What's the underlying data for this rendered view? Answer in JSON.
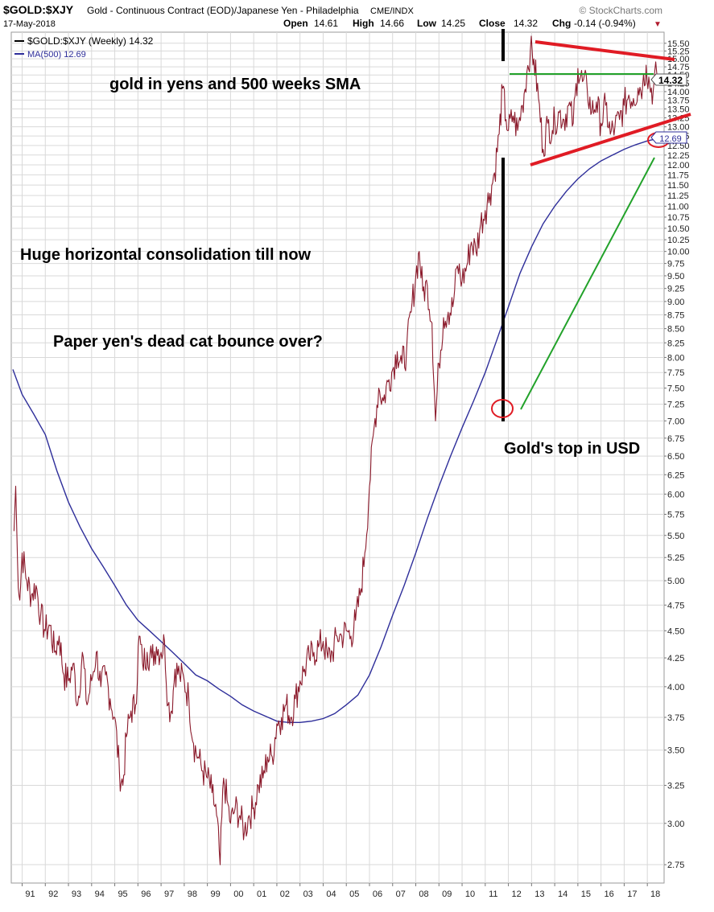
{
  "header": {
    "symbol": "$GOLD:$XJY",
    "description": "Gold - Continuous Contract (EOD)/Japanese Yen - Philadelphia",
    "exchange": "CME/INDX",
    "brand": "© StockCharts.com",
    "date": "17-May-2018",
    "open_label": "Open",
    "open_value": "14.61",
    "high_label": "High",
    "high_value": "14.66",
    "low_label": "Low",
    "low_value": "14.25",
    "close_label": "Close",
    "close_value": "14.32",
    "chg_label": "Chg",
    "chg_value": "-0.14 (-0.94%)",
    "chg_arrow": "▼"
  },
  "colors": {
    "price": "#8b1a2b",
    "ma": "#2e2e9a",
    "red_lines": "#e01b24",
    "green_lines": "#22a22a",
    "black_line": "#000000",
    "grid": "#d9d9d9"
  },
  "annotations": {
    "title_note": "gold in yens and 500 weeks SMA",
    "consolidation_note": "Huge horizontal consolidation till now",
    "dead_cat_note": "Paper yen's dead cat bounce over?",
    "top_note": "Gold's top in USD"
  },
  "chart_data": {
    "type": "line",
    "y_scale": "log",
    "ylim": [
      2.7,
      15.6
    ],
    "xlim": [
      1990.6,
      2018.55
    ],
    "legend": {
      "placement": "top-left",
      "items": [
        {
          "label": "$GOLD:$XJY (Weekly) 14.32",
          "series": "price"
        },
        {
          "label": "MA(500) 12.69",
          "series": "ma"
        }
      ]
    },
    "price_label": "14.32",
    "ma_label": "12.69",
    "y_ticks": [
      2.75,
      3.0,
      3.25,
      3.5,
      3.75,
      4.0,
      4.25,
      4.5,
      4.75,
      5.0,
      5.25,
      5.5,
      5.75,
      6.0,
      6.25,
      6.5,
      6.75,
      7.0,
      7.25,
      7.5,
      7.75,
      8.0,
      8.25,
      8.5,
      8.75,
      9.0,
      9.25,
      9.5,
      9.75,
      10.0,
      10.25,
      10.5,
      10.75,
      11.0,
      11.25,
      11.5,
      11.75,
      12.0,
      12.25,
      12.5,
      12.75,
      13.0,
      13.25,
      13.5,
      13.75,
      14.0,
      14.25,
      14.5,
      14.75,
      15.0,
      15.25,
      15.5
    ],
    "x_ticks": [
      {
        "label": "91",
        "x": 1991
      },
      {
        "label": "92",
        "x": 1992
      },
      {
        "label": "93",
        "x": 1993
      },
      {
        "label": "94",
        "x": 1994
      },
      {
        "label": "95",
        "x": 1995
      },
      {
        "label": "96",
        "x": 1996
      },
      {
        "label": "97",
        "x": 1997
      },
      {
        "label": "98",
        "x": 1998
      },
      {
        "label": "99",
        "x": 1999
      },
      {
        "label": "00",
        "x": 2000
      },
      {
        "label": "01",
        "x": 2001
      },
      {
        "label": "02",
        "x": 2002
      },
      {
        "label": "03",
        "x": 2003
      },
      {
        "label": "04",
        "x": 2004
      },
      {
        "label": "05",
        "x": 2005
      },
      {
        "label": "06",
        "x": 2006
      },
      {
        "label": "07",
        "x": 2007
      },
      {
        "label": "08",
        "x": 2008
      },
      {
        "label": "09",
        "x": 2009
      },
      {
        "label": "10",
        "x": 2010
      },
      {
        "label": "11",
        "x": 2011
      },
      {
        "label": "12",
        "x": 2012
      },
      {
        "label": "13",
        "x": 2013
      },
      {
        "label": "14",
        "x": 2014
      },
      {
        "label": "15",
        "x": 2015
      },
      {
        "label": "16",
        "x": 2016
      },
      {
        "label": "17",
        "x": 2017
      },
      {
        "label": "18",
        "x": 2018
      }
    ],
    "series": [
      {
        "name": "$GOLD:$XJY (Weekly)",
        "key": "price",
        "points": [
          [
            1990.65,
            5.55
          ],
          [
            1990.72,
            6.1
          ],
          [
            1990.8,
            5.2
          ],
          [
            1990.9,
            4.8
          ],
          [
            1991.0,
            5.3
          ],
          [
            1991.2,
            5.0
          ],
          [
            1991.4,
            4.85
          ],
          [
            1991.6,
            4.95
          ],
          [
            1991.8,
            4.65
          ],
          [
            1992.0,
            4.5
          ],
          [
            1992.2,
            4.55
          ],
          [
            1992.4,
            4.3
          ],
          [
            1992.6,
            4.45
          ],
          [
            1992.8,
            4.1
          ],
          [
            1993.0,
            4.05
          ],
          [
            1993.2,
            4.2
          ],
          [
            1993.4,
            3.85
          ],
          [
            1993.6,
            4.3
          ],
          [
            1993.8,
            3.85
          ],
          [
            1994.0,
            4.05
          ],
          [
            1994.2,
            4.3
          ],
          [
            1994.4,
            4.0
          ],
          [
            1994.6,
            4.1
          ],
          [
            1994.8,
            3.9
          ],
          [
            1995.0,
            3.75
          ],
          [
            1995.2,
            3.35
          ],
          [
            1995.35,
            3.25
          ],
          [
            1995.5,
            3.6
          ],
          [
            1995.7,
            3.8
          ],
          [
            1995.9,
            3.85
          ],
          [
            1996.05,
            4.45
          ],
          [
            1996.2,
            4.2
          ],
          [
            1996.4,
            4.3
          ],
          [
            1996.6,
            4.25
          ],
          [
            1996.8,
            4.35
          ],
          [
            1997.0,
            4.3
          ],
          [
            1997.15,
            4.4
          ],
          [
            1997.3,
            3.85
          ],
          [
            1997.45,
            3.8
          ],
          [
            1997.6,
            4.15
          ],
          [
            1997.8,
            4.1
          ],
          [
            1998.0,
            4.05
          ],
          [
            1998.2,
            3.9
          ],
          [
            1998.4,
            3.55
          ],
          [
            1998.6,
            3.45
          ],
          [
            1998.8,
            3.35
          ],
          [
            1999.0,
            3.3
          ],
          [
            1999.2,
            3.2
          ],
          [
            1999.4,
            3.05
          ],
          [
            1999.55,
            2.75
          ],
          [
            1999.7,
            3.3
          ],
          [
            1999.85,
            3.15
          ],
          [
            2000.0,
            3.0
          ],
          [
            2000.2,
            3.1
          ],
          [
            2000.4,
            3.05
          ],
          [
            2000.6,
            2.95
          ],
          [
            2000.8,
            3.05
          ],
          [
            2001.0,
            3.1
          ],
          [
            2001.2,
            3.25
          ],
          [
            2001.4,
            3.3
          ],
          [
            2001.6,
            3.45
          ],
          [
            2001.8,
            3.45
          ],
          [
            2002.0,
            3.7
          ],
          [
            2002.2,
            3.75
          ],
          [
            2002.4,
            3.85
          ],
          [
            2002.6,
            3.75
          ],
          [
            2002.8,
            3.9
          ],
          [
            2003.0,
            4.05
          ],
          [
            2003.2,
            4.15
          ],
          [
            2003.4,
            4.25
          ],
          [
            2003.6,
            4.3
          ],
          [
            2003.8,
            4.35
          ],
          [
            2004.0,
            4.4
          ],
          [
            2004.2,
            4.25
          ],
          [
            2004.4,
            4.3
          ],
          [
            2004.6,
            4.45
          ],
          [
            2004.8,
            4.45
          ],
          [
            2005.0,
            4.5
          ],
          [
            2005.2,
            4.45
          ],
          [
            2005.4,
            4.6
          ],
          [
            2005.6,
            4.85
          ],
          [
            2005.8,
            5.3
          ],
          [
            2006.0,
            6.1
          ],
          [
            2006.2,
            6.9
          ],
          [
            2006.4,
            7.5
          ],
          [
            2006.6,
            7.3
          ],
          [
            2006.8,
            7.6
          ],
          [
            2007.0,
            7.8
          ],
          [
            2007.2,
            8.1
          ],
          [
            2007.4,
            7.9
          ],
          [
            2007.6,
            8.1
          ],
          [
            2007.8,
            8.8
          ],
          [
            2008.0,
            9.5
          ],
          [
            2008.15,
            10.0
          ],
          [
            2008.3,
            9.2
          ],
          [
            2008.5,
            9.3
          ],
          [
            2008.7,
            8.6
          ],
          [
            2008.85,
            7.0
          ],
          [
            2009.0,
            7.9
          ],
          [
            2009.2,
            8.7
          ],
          [
            2009.4,
            8.8
          ],
          [
            2009.6,
            8.9
          ],
          [
            2009.8,
            9.7
          ],
          [
            2010.0,
            9.4
          ],
          [
            2010.2,
            9.7
          ],
          [
            2010.4,
            10.2
          ],
          [
            2010.6,
            10.0
          ],
          [
            2010.8,
            10.6
          ],
          [
            2011.0,
            10.9
          ],
          [
            2011.2,
            11.3
          ],
          [
            2011.4,
            11.8
          ],
          [
            2011.6,
            12.8
          ],
          [
            2011.75,
            14.1
          ],
          [
            2011.9,
            13.2
          ],
          [
            2012.0,
            12.9
          ],
          [
            2012.2,
            13.3
          ],
          [
            2012.4,
            12.9
          ],
          [
            2012.6,
            13.6
          ],
          [
            2012.8,
            14.6
          ],
          [
            2012.95,
            15.3
          ],
          [
            2013.1,
            15.0
          ],
          [
            2013.3,
            13.8
          ],
          [
            2013.5,
            12.4
          ],
          [
            2013.7,
            13.1
          ],
          [
            2013.9,
            12.9
          ],
          [
            2014.0,
            13.2
          ],
          [
            2014.2,
            13.4
          ],
          [
            2014.4,
            13.2
          ],
          [
            2014.6,
            13.6
          ],
          [
            2014.8,
            13.1
          ],
          [
            2015.0,
            14.7
          ],
          [
            2015.2,
            14.3
          ],
          [
            2015.4,
            14.1
          ],
          [
            2015.6,
            13.4
          ],
          [
            2015.8,
            13.7
          ],
          [
            2016.0,
            13.1
          ],
          [
            2016.2,
            13.6
          ],
          [
            2016.4,
            12.8
          ],
          [
            2016.6,
            13.0
          ],
          [
            2016.8,
            13.2
          ],
          [
            2017.0,
            13.6
          ],
          [
            2017.2,
            13.9
          ],
          [
            2017.4,
            13.8
          ],
          [
            2017.6,
            14.1
          ],
          [
            2017.8,
            14.2
          ],
          [
            2017.95,
            14.8
          ],
          [
            2018.1,
            14.2
          ],
          [
            2018.25,
            14.0
          ],
          [
            2018.4,
            14.6
          ],
          [
            2018.5,
            14.32
          ]
        ]
      },
      {
        "name": "MA(500)",
        "key": "ma",
        "points": [
          [
            1990.6,
            7.8
          ],
          [
            1991.0,
            7.4
          ],
          [
            1991.5,
            7.1
          ],
          [
            1992.0,
            6.8
          ],
          [
            1992.5,
            6.3
          ],
          [
            1993.0,
            5.9
          ],
          [
            1993.5,
            5.6
          ],
          [
            1994.0,
            5.35
          ],
          [
            1994.5,
            5.15
          ],
          [
            1995.0,
            4.95
          ],
          [
            1995.5,
            4.75
          ],
          [
            1996.0,
            4.6
          ],
          [
            1996.5,
            4.5
          ],
          [
            1997.0,
            4.4
          ],
          [
            1997.5,
            4.3
          ],
          [
            1998.0,
            4.2
          ],
          [
            1998.5,
            4.1
          ],
          [
            1999.0,
            4.05
          ],
          [
            1999.5,
            3.98
          ],
          [
            2000.0,
            3.92
          ],
          [
            2000.5,
            3.85
          ],
          [
            2001.0,
            3.8
          ],
          [
            2001.5,
            3.76
          ],
          [
            2002.0,
            3.72
          ],
          [
            2002.5,
            3.71
          ],
          [
            2003.0,
            3.71
          ],
          [
            2003.5,
            3.72
          ],
          [
            2004.0,
            3.74
          ],
          [
            2004.5,
            3.78
          ],
          [
            2005.0,
            3.85
          ],
          [
            2005.5,
            3.93
          ],
          [
            2006.0,
            4.1
          ],
          [
            2006.5,
            4.35
          ],
          [
            2007.0,
            4.65
          ],
          [
            2007.5,
            4.95
          ],
          [
            2008.0,
            5.3
          ],
          [
            2008.5,
            5.7
          ],
          [
            2009.0,
            6.1
          ],
          [
            2009.5,
            6.5
          ],
          [
            2010.0,
            6.9
          ],
          [
            2010.5,
            7.3
          ],
          [
            2011.0,
            7.75
          ],
          [
            2011.5,
            8.3
          ],
          [
            2012.0,
            8.9
          ],
          [
            2012.5,
            9.55
          ],
          [
            2013.0,
            10.1
          ],
          [
            2013.5,
            10.6
          ],
          [
            2014.0,
            11.0
          ],
          [
            2014.5,
            11.35
          ],
          [
            2015.0,
            11.65
          ],
          [
            2015.5,
            11.9
          ],
          [
            2016.0,
            12.1
          ],
          [
            2016.5,
            12.25
          ],
          [
            2017.0,
            12.4
          ],
          [
            2017.5,
            12.52
          ],
          [
            2018.0,
            12.62
          ],
          [
            2018.5,
            12.69
          ]
        ]
      }
    ]
  }
}
